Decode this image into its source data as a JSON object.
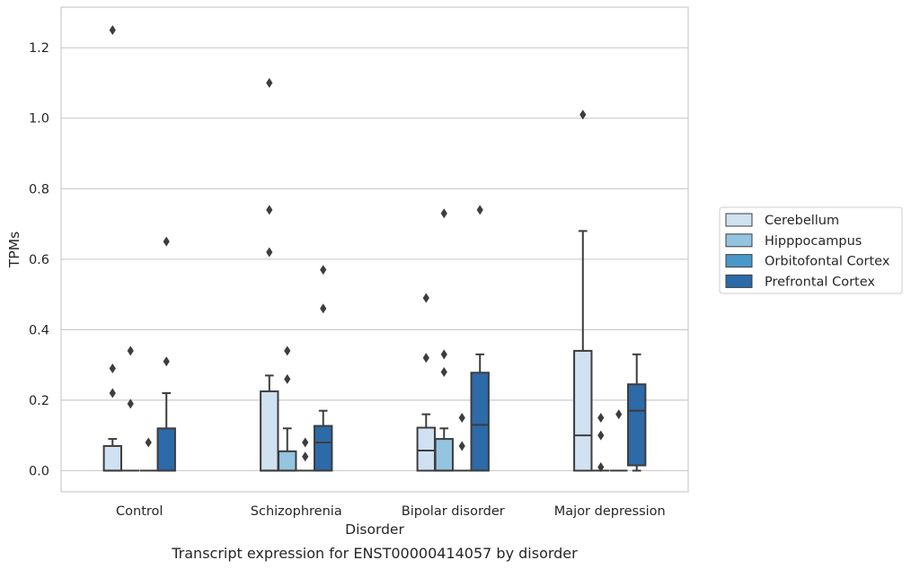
{
  "chart_data": {
    "type": "box",
    "title": "",
    "caption": "Transcript expression for ENST00000414057 by disorder",
    "xlabel": "Disorder",
    "ylabel": "TPMs",
    "ylim": [
      -0.06,
      1.315
    ],
    "y_ticks": [
      "0.0",
      "0.2",
      "0.4",
      "0.6",
      "0.8",
      "1.0",
      "1.2"
    ],
    "categories": [
      "Control",
      "Schizophrenia",
      "Bipolar disorder",
      "Major depression"
    ],
    "grid": "horizontal",
    "legend_position": "right",
    "series": [
      {
        "name": "Cerebellum",
        "color": "#d0e1f2",
        "boxes": [
          {
            "whisker_low": 0.0,
            "q1": 0.0,
            "median": 0.0,
            "q3": 0.07,
            "whisker_high": 0.09,
            "outliers": [
              1.25,
              0.29,
              0.22
            ]
          },
          {
            "whisker_low": 0.0,
            "q1": 0.0,
            "median": 0.0,
            "q3": 0.225,
            "whisker_high": 0.27,
            "outliers": [
              1.1,
              0.74,
              0.62
            ]
          },
          {
            "whisker_low": 0.0,
            "q1": 0.0,
            "median": 0.057,
            "q3": 0.122,
            "whisker_high": 0.16,
            "outliers": [
              0.49,
              0.32
            ]
          },
          {
            "whisker_low": 0.0,
            "q1": 0.0,
            "median": 0.1,
            "q3": 0.34,
            "whisker_high": 0.68,
            "outliers": [
              1.01
            ]
          }
        ]
      },
      {
        "name": "Hipppocampus",
        "color": "#94c4df",
        "boxes": [
          {
            "whisker_low": 0.0,
            "q1": 0.0,
            "median": 0.0,
            "q3": 0.0,
            "whisker_high": 0.0,
            "outliers": [
              0.34,
              0.19
            ]
          },
          {
            "whisker_low": 0.0,
            "q1": 0.0,
            "median": 0.0,
            "q3": 0.055,
            "whisker_high": 0.12,
            "outliers": [
              0.34,
              0.26
            ]
          },
          {
            "whisker_low": 0.0,
            "q1": 0.0,
            "median": 0.0,
            "q3": 0.09,
            "whisker_high": 0.12,
            "outliers": [
              0.73,
              0.33,
              0.28
            ]
          },
          {
            "whisker_low": 0.0,
            "q1": 0.0,
            "median": 0.0,
            "q3": 0.0,
            "whisker_high": 0.0,
            "outliers": [
              0.15,
              0.1,
              0.01
            ]
          }
        ]
      },
      {
        "name": "Orbitofontal Cortex",
        "color": "#4a98c9",
        "boxes": [
          {
            "whisker_low": 0.0,
            "q1": 0.0,
            "median": 0.0,
            "q3": 0.0,
            "whisker_high": 0.0,
            "outliers": [
              0.08
            ]
          },
          {
            "whisker_low": 0.0,
            "q1": 0.0,
            "median": 0.0,
            "q3": 0.0,
            "whisker_high": 0.0,
            "outliers": [
              0.08,
              0.04
            ]
          },
          {
            "whisker_low": 0.0,
            "q1": 0.0,
            "median": 0.0,
            "q3": 0.0,
            "whisker_high": 0.0,
            "outliers": [
              0.15,
              0.07
            ]
          },
          {
            "whisker_low": 0.0,
            "q1": 0.0,
            "median": 0.0,
            "q3": 0.0,
            "whisker_high": 0.0,
            "outliers": [
              0.16
            ]
          }
        ]
      },
      {
        "name": "Prefrontal Cortex",
        "color": "#2c6aa8",
        "boxes": [
          {
            "whisker_low": 0.0,
            "q1": 0.0,
            "median": 0.0,
            "q3": 0.12,
            "whisker_high": 0.22,
            "outliers": [
              0.65,
              0.31
            ]
          },
          {
            "whisker_low": 0.0,
            "q1": 0.0,
            "median": 0.08,
            "q3": 0.127,
            "whisker_high": 0.17,
            "outliers": [
              0.57,
              0.46
            ]
          },
          {
            "whisker_low": 0.0,
            "q1": 0.0,
            "median": 0.13,
            "q3": 0.278,
            "whisker_high": 0.33,
            "outliers": [
              0.74
            ]
          },
          {
            "whisker_low": 0.0,
            "q1": 0.015,
            "median": 0.17,
            "q3": 0.245,
            "whisker_high": 0.33,
            "outliers": []
          }
        ]
      }
    ]
  }
}
